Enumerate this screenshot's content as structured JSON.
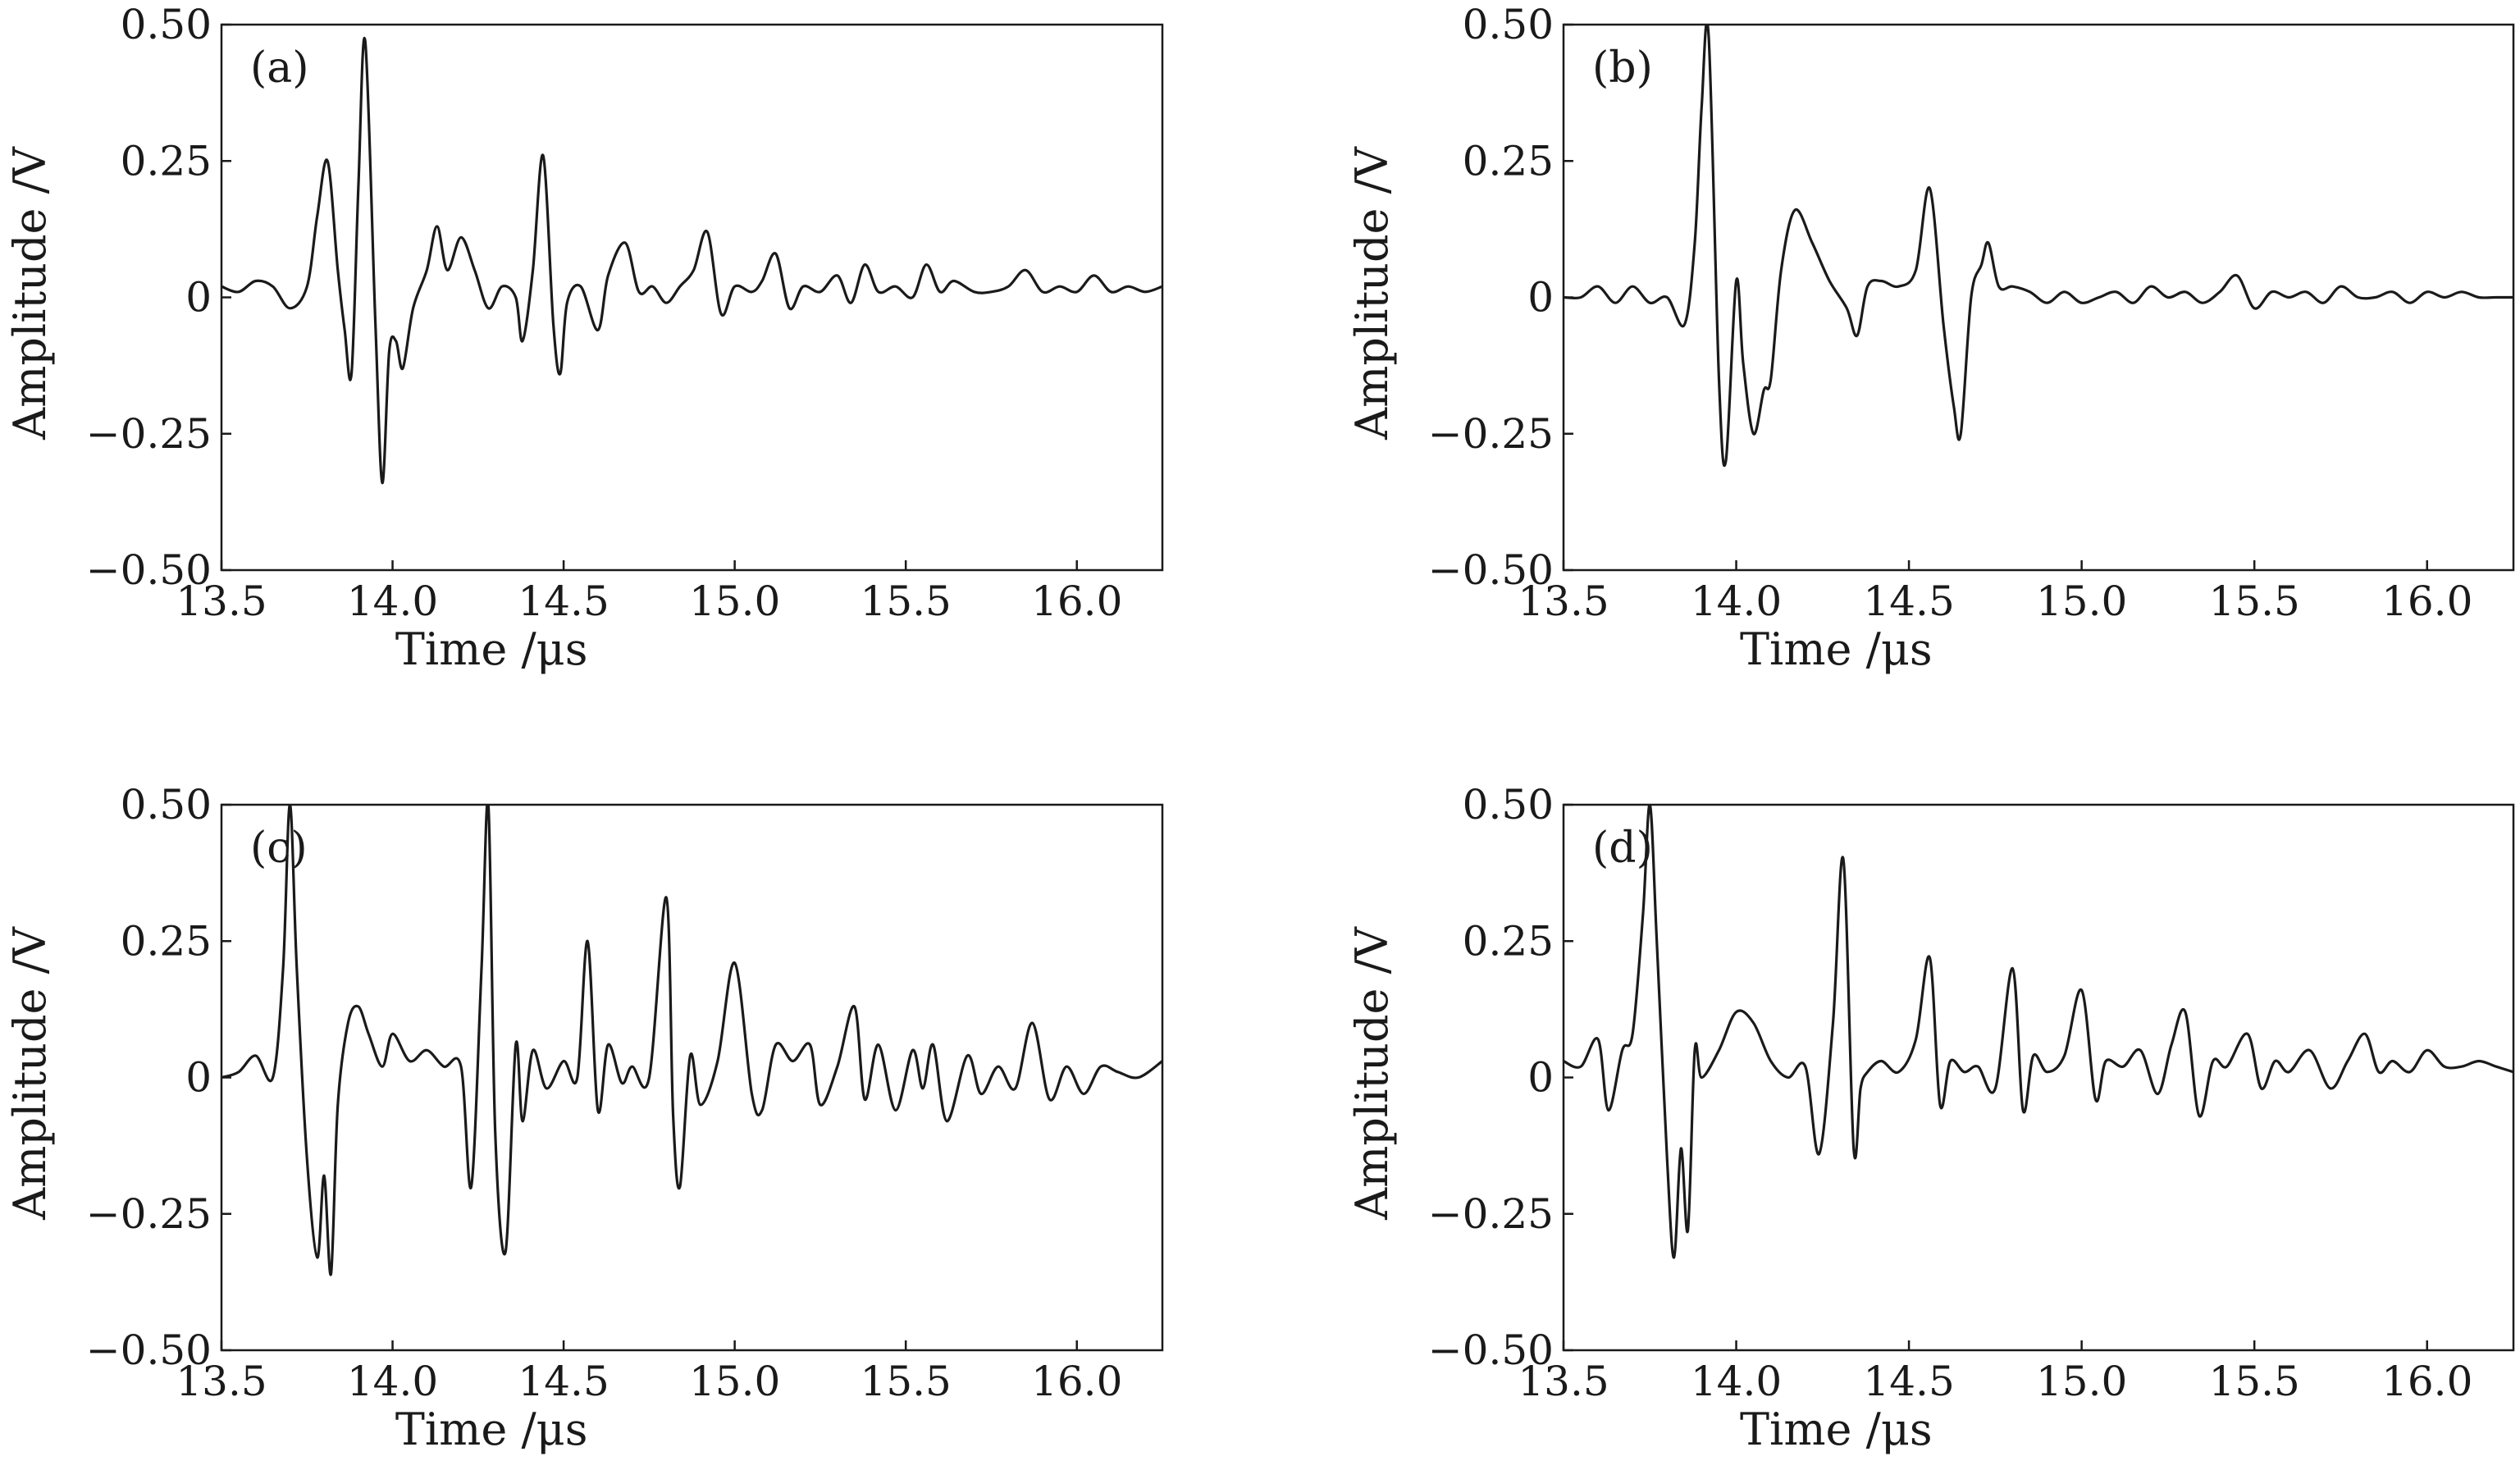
{
  "chart_data": [
    {
      "type": "line",
      "panel_label": "(a)",
      "xlabel": "Time /μs",
      "ylabel": "Amplitude /V",
      "xlim": [
        13.5,
        16.25
      ],
      "ylim": [
        -0.5,
        0.5
      ],
      "x_ticks": [
        13.5,
        14.0,
        14.5,
        15.0,
        15.5,
        16.0
      ],
      "x_tick_labels": [
        "13.5",
        "14.0",
        "14.5",
        "15.0",
        "15.5",
        "16.0"
      ],
      "y_ticks": [
        0.5,
        0.25,
        0,
        -0.25,
        -0.5
      ],
      "y_tick_labels": [
        "0.50",
        "0.25",
        "0",
        "−0.25",
        "−0.50"
      ],
      "series": [
        {
          "name": "waveform",
          "x": [
            13.5,
            13.55,
            13.6,
            13.65,
            13.7,
            13.75,
            13.78,
            13.81,
            13.84,
            13.86,
            13.88,
            13.9,
            13.92,
            13.95,
            13.97,
            13.99,
            14.01,
            14.03,
            14.06,
            14.1,
            14.13,
            14.16,
            14.2,
            14.24,
            14.28,
            14.32,
            14.36,
            14.38,
            14.41,
            14.44,
            14.47,
            14.49,
            14.51,
            14.55,
            14.6,
            14.63,
            14.68,
            14.72,
            14.76,
            14.8,
            14.84,
            14.88,
            14.92,
            14.96,
            15.0,
            15.05,
            15.08,
            15.12,
            15.16,
            15.2,
            15.25,
            15.3,
            15.34,
            15.38,
            15.42,
            15.47,
            15.52,
            15.56,
            15.6,
            15.64,
            15.7,
            15.75,
            15.8,
            15.85,
            15.9,
            15.95,
            16.0,
            16.05,
            16.1,
            16.15,
            16.2,
            16.25
          ],
          "y": [
            0.02,
            0.01,
            0.03,
            0.02,
            -0.02,
            0.02,
            0.15,
            0.25,
            0.05,
            -0.06,
            -0.14,
            0.2,
            0.47,
            -0.05,
            -0.34,
            -0.1,
            -0.08,
            -0.13,
            -0.02,
            0.05,
            0.13,
            0.05,
            0.11,
            0.05,
            -0.02,
            0.02,
            0.0,
            -0.08,
            0.05,
            0.26,
            -0.05,
            -0.14,
            -0.01,
            0.02,
            -0.06,
            0.04,
            0.1,
            0.01,
            0.02,
            -0.01,
            0.02,
            0.05,
            0.12,
            -0.03,
            0.02,
            0.01,
            0.03,
            0.08,
            -0.02,
            0.02,
            0.01,
            0.04,
            -0.01,
            0.06,
            0.01,
            0.02,
            0.0,
            0.06,
            0.01,
            0.03,
            0.01,
            0.01,
            0.02,
            0.05,
            0.01,
            0.02,
            0.01,
            0.04,
            0.01,
            0.02,
            0.01,
            0.02
          ]
        }
      ]
    },
    {
      "type": "line",
      "panel_label": "(b)",
      "xlabel": "Time /μs",
      "ylabel": "Amplitude /V",
      "xlim": [
        13.5,
        16.25
      ],
      "ylim": [
        -0.5,
        0.5
      ],
      "x_ticks": [
        13.5,
        14.0,
        14.5,
        15.0,
        15.5,
        16.0
      ],
      "x_tick_labels": [
        "13.5",
        "14.0",
        "14.5",
        "15.0",
        "15.5",
        "16.0"
      ],
      "y_ticks": [
        0.5,
        0.25,
        0,
        -0.25,
        -0.5
      ],
      "y_tick_labels": [
        "0.50",
        "0.25",
        "0",
        "−0.25",
        "−0.50"
      ],
      "series": [
        {
          "name": "waveform",
          "x": [
            13.5,
            13.55,
            13.6,
            13.65,
            13.7,
            13.75,
            13.8,
            13.85,
            13.88,
            13.9,
            13.92,
            13.95,
            13.97,
            14.0,
            14.02,
            14.05,
            14.08,
            14.1,
            14.13,
            14.17,
            14.22,
            14.27,
            14.32,
            14.35,
            14.38,
            14.42,
            14.47,
            14.52,
            14.56,
            14.6,
            14.63,
            14.65,
            14.68,
            14.71,
            14.73,
            14.76,
            14.8,
            14.85,
            14.9,
            14.95,
            15.0,
            15.05,
            15.1,
            15.15,
            15.2,
            15.25,
            15.3,
            15.35,
            15.4,
            15.45,
            15.5,
            15.55,
            15.6,
            15.65,
            15.7,
            15.75,
            15.8,
            15.85,
            15.9,
            15.95,
            16.0,
            16.05,
            16.1,
            16.15,
            16.2,
            16.25
          ],
          "y": [
            0.0,
            0.0,
            0.02,
            -0.01,
            0.02,
            -0.01,
            0.0,
            -0.05,
            0.1,
            0.35,
            0.48,
            -0.15,
            -0.3,
            0.03,
            -0.12,
            -0.25,
            -0.17,
            -0.15,
            0.05,
            0.16,
            0.1,
            0.03,
            -0.02,
            -0.07,
            0.02,
            0.03,
            0.02,
            0.05,
            0.2,
            -0.05,
            -0.2,
            -0.25,
            0.0,
            0.06,
            0.1,
            0.02,
            0.02,
            0.01,
            -0.01,
            0.01,
            -0.01,
            0.0,
            0.01,
            -0.01,
            0.02,
            0.0,
            0.01,
            -0.01,
            0.01,
            0.04,
            -0.02,
            0.01,
            0.0,
            0.01,
            -0.01,
            0.02,
            0.0,
            0.0,
            0.01,
            -0.01,
            0.01,
            0.0,
            0.01,
            0.0,
            0.0,
            0.0
          ]
        }
      ]
    },
    {
      "type": "line",
      "panel_label": "(c)",
      "xlabel": "Time /μs",
      "ylabel": "Amplitude /V",
      "xlim": [
        13.5,
        16.25
      ],
      "ylim": [
        -0.5,
        0.5
      ],
      "x_ticks": [
        13.5,
        14.0,
        14.5,
        15.0,
        15.5,
        16.0
      ],
      "x_tick_labels": [
        "13.5",
        "14.0",
        "14.5",
        "15.0",
        "15.5",
        "16.0"
      ],
      "y_ticks": [
        0.5,
        0.25,
        0,
        -0.25,
        -0.5
      ],
      "y_tick_labels": [
        "0.50",
        "0.25",
        "0",
        "−0.25",
        "−0.50"
      ],
      "series": [
        {
          "name": "waveform",
          "x": [
            13.5,
            13.55,
            13.6,
            13.65,
            13.68,
            13.7,
            13.72,
            13.75,
            13.78,
            13.8,
            13.82,
            13.84,
            13.87,
            13.9,
            13.93,
            13.97,
            14.0,
            14.05,
            14.1,
            14.15,
            14.2,
            14.23,
            14.26,
            14.28,
            14.3,
            14.33,
            14.36,
            14.38,
            14.41,
            14.45,
            14.5,
            14.54,
            14.57,
            14.6,
            14.63,
            14.67,
            14.7,
            14.75,
            14.8,
            14.82,
            14.84,
            14.87,
            14.9,
            14.95,
            15.0,
            15.05,
            15.08,
            15.12,
            15.17,
            15.22,
            15.25,
            15.3,
            15.35,
            15.38,
            15.42,
            15.47,
            15.52,
            15.55,
            15.58,
            15.62,
            15.68,
            15.72,
            15.77,
            15.82,
            15.87,
            15.92,
            15.97,
            16.02,
            16.07,
            16.12,
            16.18,
            16.25
          ],
          "y": [
            0.0,
            0.01,
            0.04,
            0.0,
            0.2,
            0.5,
            0.2,
            -0.15,
            -0.33,
            -0.18,
            -0.36,
            -0.05,
            0.1,
            0.13,
            0.08,
            0.02,
            0.08,
            0.03,
            0.05,
            0.02,
            0.02,
            -0.2,
            0.2,
            0.5,
            -0.1,
            -0.32,
            0.06,
            -0.08,
            0.05,
            -0.02,
            0.03,
            0.0,
            0.25,
            -0.06,
            0.06,
            -0.01,
            0.02,
            0.0,
            0.33,
            -0.07,
            -0.2,
            0.04,
            -0.05,
            0.03,
            0.21,
            -0.03,
            -0.06,
            0.06,
            0.03,
            0.06,
            -0.05,
            0.02,
            0.13,
            -0.04,
            0.06,
            -0.06,
            0.05,
            -0.02,
            0.06,
            -0.08,
            0.04,
            -0.03,
            0.02,
            -0.02,
            0.1,
            -0.04,
            0.02,
            -0.03,
            0.02,
            0.01,
            0.0,
            0.03
          ]
        }
      ]
    },
    {
      "type": "line",
      "panel_label": "(d)",
      "xlabel": "Time /μs",
      "ylabel": "Amplitude /V",
      "xlim": [
        13.5,
        16.25
      ],
      "ylim": [
        -0.5,
        0.5
      ],
      "x_ticks": [
        13.5,
        14.0,
        14.5,
        15.0,
        15.5,
        16.0
      ],
      "x_tick_labels": [
        "13.5",
        "14.0",
        "14.5",
        "15.0",
        "15.5",
        "16.0"
      ],
      "y_ticks": [
        0.5,
        0.25,
        0,
        -0.25,
        -0.5
      ],
      "y_tick_labels": [
        "0.50",
        "0.25",
        "0",
        "−0.25",
        "−0.50"
      ],
      "series": [
        {
          "name": "waveform",
          "x": [
            13.5,
            13.55,
            13.6,
            13.63,
            13.67,
            13.7,
            13.73,
            13.75,
            13.77,
            13.8,
            13.82,
            13.84,
            13.86,
            13.88,
            13.9,
            13.95,
            14.0,
            14.05,
            14.1,
            14.15,
            14.2,
            14.24,
            14.28,
            14.31,
            14.34,
            14.36,
            14.38,
            14.42,
            14.47,
            14.52,
            14.56,
            14.59,
            14.62,
            14.66,
            14.7,
            14.75,
            14.8,
            14.83,
            14.86,
            14.9,
            14.95,
            15.0,
            15.04,
            15.07,
            15.12,
            15.17,
            15.22,
            15.26,
            15.3,
            15.34,
            15.38,
            15.42,
            15.48,
            15.52,
            15.56,
            15.6,
            15.66,
            15.72,
            15.77,
            15.82,
            15.86,
            15.9,
            15.95,
            16.0,
            16.05,
            16.1,
            16.15,
            16.2,
            16.25
          ],
          "y": [
            0.03,
            0.02,
            0.07,
            -0.06,
            0.05,
            0.08,
            0.3,
            0.5,
            0.25,
            -0.15,
            -0.33,
            -0.13,
            -0.28,
            0.05,
            0.0,
            0.05,
            0.12,
            0.1,
            0.03,
            0.0,
            0.02,
            -0.14,
            0.1,
            0.4,
            -0.13,
            -0.02,
            0.01,
            0.03,
            0.01,
            0.07,
            0.22,
            -0.05,
            0.03,
            0.01,
            0.02,
            -0.02,
            0.2,
            -0.06,
            0.04,
            0.01,
            0.04,
            0.16,
            -0.04,
            0.03,
            0.02,
            0.05,
            -0.03,
            0.06,
            0.12,
            -0.07,
            0.03,
            0.02,
            0.08,
            -0.02,
            0.03,
            0.01,
            0.05,
            -0.02,
            0.03,
            0.08,
            0.01,
            0.03,
            0.01,
            0.05,
            0.02,
            0.02,
            0.03,
            0.02,
            0.01
          ]
        }
      ]
    }
  ]
}
